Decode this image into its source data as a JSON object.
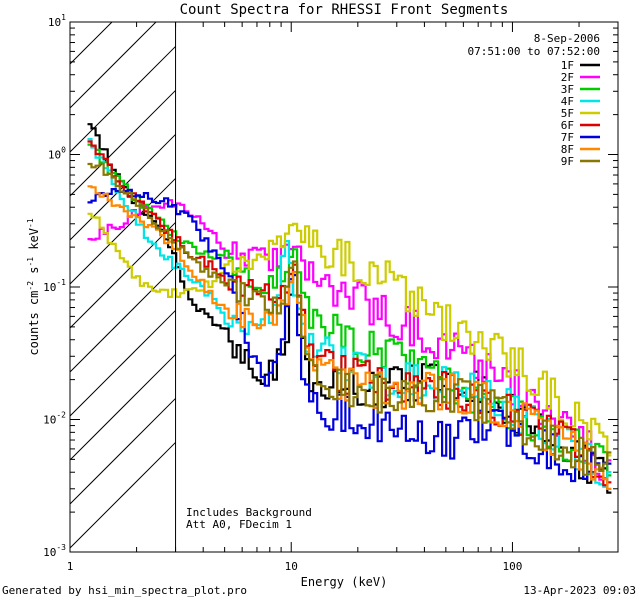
{
  "chart_data": {
    "type": "line",
    "title": "Count Spectra for RHESSI Front Segments",
    "xlabel": "Energy (keV)",
    "ylabel_parts": [
      "counts cm",
      "-2",
      " s",
      "-1",
      " keV",
      "-1"
    ],
    "xscale": "log",
    "yscale": "log",
    "xlim": [
      1,
      300
    ],
    "ylim": [
      0.001,
      10
    ],
    "x_ticks": [
      {
        "value": 1,
        "label": "1"
      },
      {
        "value": 10,
        "label": "10"
      },
      {
        "value": 100,
        "label": "100"
      }
    ],
    "y_ticks": [
      {
        "value": 0.001,
        "base": "10",
        "exp": "-3"
      },
      {
        "value": 0.01,
        "base": "10",
        "exp": "-2"
      },
      {
        "value": 0.1,
        "base": "10",
        "exp": "-1"
      },
      {
        "value": 1,
        "base": "10",
        "exp": "0"
      },
      {
        "value": 10,
        "base": "10",
        "exp": "1"
      }
    ],
    "excluded_below_keV": 3,
    "date": "8-Sep-2006",
    "time_range": "07:51:00 to 07:52:00",
    "notes": [
      "Includes Background",
      "Att A0, FDecim 1"
    ],
    "series": [
      {
        "name": "1F",
        "color": "#000000",
        "x": [
          1.2,
          1.4,
          1.7,
          2.2,
          2.8,
          3.5,
          4.5,
          6,
          7.5,
          8.5,
          9.5,
          10.3,
          11,
          12,
          14,
          17,
          22,
          30,
          40,
          55,
          70,
          90,
          120,
          160,
          200,
          250,
          280
        ],
        "y": [
          1.8,
          1.15,
          0.6,
          0.35,
          0.22,
          0.08,
          0.055,
          0.03,
          0.022,
          0.024,
          0.04,
          0.17,
          0.06,
          0.02,
          0.015,
          0.018,
          0.016,
          0.018,
          0.019,
          0.02,
          0.017,
          0.013,
          0.009,
          0.0065,
          0.005,
          0.004,
          0.0035
        ]
      },
      {
        "name": "2F",
        "color": "#ff00ff",
        "x": [
          1.2,
          1.4,
          1.7,
          2.2,
          3,
          4,
          5,
          6,
          8,
          9.5,
          10.5,
          11.5,
          13,
          15,
          18,
          22,
          28,
          35,
          45,
          60,
          80,
          100,
          130,
          170,
          220,
          280
        ],
        "y": [
          0.22,
          0.26,
          0.3,
          0.42,
          0.43,
          0.3,
          0.2,
          0.17,
          0.16,
          0.18,
          0.19,
          0.14,
          0.12,
          0.1,
          0.09,
          0.075,
          0.06,
          0.05,
          0.04,
          0.03,
          0.022,
          0.018,
          0.013,
          0.009,
          0.006,
          0.004
        ]
      },
      {
        "name": "3F",
        "color": "#00cc00",
        "x": [
          1.2,
          1.4,
          1.7,
          2.2,
          3,
          4,
          5,
          6.5,
          8,
          9.5,
          10.5,
          12,
          14,
          17,
          22,
          28,
          35,
          45,
          60,
          80,
          100,
          140,
          200,
          280
        ],
        "y": [
          1.3,
          0.9,
          0.6,
          0.4,
          0.24,
          0.18,
          0.16,
          0.12,
          0.1,
          0.14,
          0.2,
          0.06,
          0.055,
          0.045,
          0.036,
          0.03,
          0.025,
          0.02,
          0.017,
          0.013,
          0.011,
          0.008,
          0.006,
          0.004
        ]
      },
      {
        "name": "4F",
        "color": "#00e5e5",
        "x": [
          1.2,
          1.4,
          1.7,
          2.2,
          2.8,
          3.5,
          4.5,
          5.5,
          6.5,
          7.5,
          8.5,
          9.7,
          10.5,
          11.5,
          13,
          15,
          18,
          22,
          30,
          40,
          55,
          75,
          100,
          140,
          200,
          280
        ],
        "y": [
          1.3,
          0.9,
          0.5,
          0.25,
          0.16,
          0.12,
          0.08,
          0.055,
          0.045,
          0.05,
          0.07,
          0.24,
          0.08,
          0.04,
          0.035,
          0.03,
          0.025,
          0.022,
          0.02,
          0.019,
          0.018,
          0.015,
          0.012,
          0.008,
          0.0055,
          0.004
        ]
      },
      {
        "name": "5F",
        "color": "#cccc00",
        "x": [
          1.2,
          1.4,
          1.7,
          2.2,
          2.7,
          3.5,
          4.5,
          6,
          8,
          9.5,
          10.8,
          12,
          14,
          17,
          22,
          28,
          35,
          45,
          60,
          80,
          100,
          130,
          170,
          220,
          280
        ],
        "y": [
          0.4,
          0.28,
          0.16,
          0.1,
          0.09,
          0.09,
          0.11,
          0.15,
          0.2,
          0.25,
          0.28,
          0.24,
          0.2,
          0.17,
          0.14,
          0.11,
          0.08,
          0.06,
          0.045,
          0.035,
          0.028,
          0.02,
          0.013,
          0.009,
          0.0045
        ]
      },
      {
        "name": "6F",
        "color": "#dd0000",
        "x": [
          1.2,
          1.4,
          1.7,
          2.2,
          2.8,
          3.5,
          4.5,
          6,
          7.5,
          8.5,
          9.5,
          10.3,
          11,
          12,
          14,
          17,
          22,
          30,
          40,
          55,
          75,
          100,
          140,
          200,
          280
        ],
        "y": [
          1.2,
          1.0,
          0.6,
          0.4,
          0.26,
          0.18,
          0.14,
          0.1,
          0.09,
          0.08,
          0.09,
          0.2,
          0.07,
          0.035,
          0.025,
          0.022,
          0.02,
          0.019,
          0.018,
          0.016,
          0.014,
          0.011,
          0.008,
          0.006,
          0.004
        ]
      },
      {
        "name": "7F",
        "color": "#0000dd",
        "x": [
          1.2,
          1.4,
          1.7,
          2.2,
          2.8,
          3.5,
          4.5,
          5.5,
          6.5,
          7.5,
          8.5,
          9.5,
          10.3,
          11,
          12,
          14,
          17,
          22,
          30,
          40,
          55,
          75,
          100,
          140,
          200,
          280
        ],
        "y": [
          0.46,
          0.5,
          0.52,
          0.48,
          0.43,
          0.32,
          0.18,
          0.09,
          0.035,
          0.02,
          0.025,
          0.06,
          0.13,
          0.03,
          0.015,
          0.012,
          0.011,
          0.01,
          0.008,
          0.007,
          0.007,
          0.009,
          0.008,
          0.006,
          0.0045,
          0.0035
        ]
      },
      {
        "name": "8F",
        "color": "#ff8800",
        "x": [
          1.2,
          1.4,
          1.7,
          2.2,
          2.8,
          3.5,
          4.5,
          6,
          7.5,
          8.5,
          9.5,
          10.3,
          11,
          12,
          14,
          17,
          22,
          30,
          40,
          55,
          75,
          100,
          140,
          200,
          280
        ],
        "y": [
          0.55,
          0.5,
          0.4,
          0.3,
          0.22,
          0.14,
          0.08,
          0.06,
          0.055,
          0.06,
          0.08,
          0.18,
          0.07,
          0.03,
          0.022,
          0.019,
          0.017,
          0.016,
          0.017,
          0.016,
          0.014,
          0.011,
          0.008,
          0.0055,
          0.004
        ]
      },
      {
        "name": "9F",
        "color": "#887700",
        "x": [
          1.2,
          1.4,
          1.7,
          2.2,
          2.8,
          3.5,
          4.5,
          6,
          7.5,
          8.5,
          9.5,
          10.3,
          11,
          12,
          14,
          17,
          22,
          30,
          40,
          55,
          75,
          100,
          140,
          200,
          280
        ],
        "y": [
          0.9,
          0.8,
          0.55,
          0.38,
          0.24,
          0.16,
          0.12,
          0.09,
          0.075,
          0.07,
          0.08,
          0.15,
          0.06,
          0.028,
          0.02,
          0.018,
          0.016,
          0.015,
          0.016,
          0.015,
          0.013,
          0.01,
          0.0075,
          0.0055,
          0.004
        ]
      }
    ]
  },
  "footer": {
    "generated_by": "Generated by hsi_min_spectra_plot.pro",
    "timestamp": "13-Apr-2023 09:03"
  }
}
